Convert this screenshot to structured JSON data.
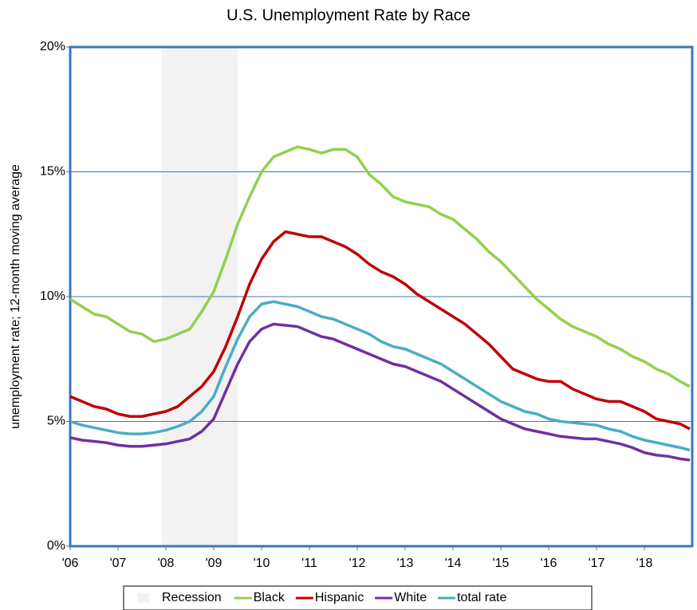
{
  "chart_data": {
    "type": "line",
    "title": "U.S. Unemployment Rate by Race",
    "y_label": "unemployment rate; 12-month moving average",
    "x": [
      2006,
      2006.25,
      2006.5,
      2006.75,
      2007,
      2007.25,
      2007.5,
      2007.75,
      2008,
      2008.25,
      2008.5,
      2008.75,
      2009,
      2009.25,
      2009.5,
      2009.75,
      2010,
      2010.25,
      2010.5,
      2010.75,
      2011,
      2011.25,
      2011.5,
      2011.75,
      2012,
      2012.25,
      2012.5,
      2012.75,
      2013,
      2013.25,
      2013.5,
      2013.75,
      2014,
      2014.25,
      2014.5,
      2014.75,
      2015,
      2015.25,
      2015.5,
      2015.75,
      2016,
      2016.25,
      2016.5,
      2016.75,
      2017,
      2017.25,
      2017.5,
      2017.75,
      2018,
      2018.25,
      2018.5,
      2018.75,
      2018.95
    ],
    "series": [
      {
        "name": "Black",
        "color": "#92d050",
        "values": [
          9.9,
          9.6,
          9.3,
          9.2,
          8.9,
          8.6,
          8.5,
          8.2,
          8.3,
          8.5,
          8.7,
          9.4,
          10.2,
          11.5,
          12.9,
          14.0,
          15.0,
          15.6,
          15.8,
          16.0,
          15.9,
          15.75,
          15.9,
          15.9,
          15.6,
          14.9,
          14.5,
          14.0,
          13.8,
          13.7,
          13.6,
          13.3,
          13.1,
          12.7,
          12.3,
          11.8,
          11.4,
          10.9,
          10.4,
          9.9,
          9.5,
          9.1,
          8.8,
          8.6,
          8.4,
          8.1,
          7.9,
          7.6,
          7.4,
          7.1,
          6.9,
          6.6,
          6.4
        ]
      },
      {
        "name": "Hispanic",
        "color": "#c00000",
        "values": [
          6.0,
          5.8,
          5.6,
          5.5,
          5.3,
          5.2,
          5.2,
          5.3,
          5.4,
          5.6,
          6.0,
          6.4,
          7.0,
          8.0,
          9.2,
          10.5,
          11.5,
          12.2,
          12.6,
          12.5,
          12.4,
          12.4,
          12.2,
          12.0,
          11.7,
          11.3,
          11.0,
          10.8,
          10.5,
          10.1,
          9.8,
          9.5,
          9.2,
          8.9,
          8.5,
          8.1,
          7.6,
          7.1,
          6.9,
          6.7,
          6.6,
          6.6,
          6.3,
          6.1,
          5.9,
          5.8,
          5.8,
          5.6,
          5.4,
          5.1,
          5.0,
          4.9,
          4.7
        ]
      },
      {
        "name": "White",
        "color": "#7030a0",
        "values": [
          4.35,
          4.25,
          4.2,
          4.15,
          4.05,
          4.0,
          4.0,
          4.05,
          4.1,
          4.2,
          4.3,
          4.6,
          5.1,
          6.2,
          7.3,
          8.2,
          8.7,
          8.9,
          8.85,
          8.8,
          8.6,
          8.4,
          8.3,
          8.1,
          7.9,
          7.7,
          7.5,
          7.3,
          7.2,
          7.0,
          6.8,
          6.6,
          6.3,
          6.0,
          5.7,
          5.4,
          5.1,
          4.9,
          4.7,
          4.6,
          4.5,
          4.4,
          4.35,
          4.3,
          4.3,
          4.2,
          4.1,
          3.95,
          3.75,
          3.65,
          3.6,
          3.5,
          3.45
        ]
      },
      {
        "name": "total rate",
        "color": "#4bacc6",
        "values": [
          5.0,
          4.85,
          4.75,
          4.65,
          4.55,
          4.5,
          4.5,
          4.55,
          4.65,
          4.8,
          5.0,
          5.4,
          6.0,
          7.2,
          8.3,
          9.2,
          9.7,
          9.8,
          9.7,
          9.6,
          9.4,
          9.2,
          9.1,
          8.9,
          8.7,
          8.5,
          8.2,
          8.0,
          7.9,
          7.7,
          7.5,
          7.3,
          7.0,
          6.7,
          6.4,
          6.1,
          5.8,
          5.6,
          5.4,
          5.3,
          5.1,
          5.0,
          4.95,
          4.9,
          4.85,
          4.7,
          4.6,
          4.4,
          4.25,
          4.15,
          4.05,
          3.95,
          3.85
        ]
      }
    ],
    "recession": {
      "name": "Recession",
      "range": [
        2007.92,
        2009.5
      ],
      "color": "#f2f2f2"
    },
    "xlim": [
      2006,
      2019
    ],
    "xticks": [
      {
        "value": 2006,
        "label": "'06"
      },
      {
        "value": 2007,
        "label": "'07"
      },
      {
        "value": 2008,
        "label": "'08"
      },
      {
        "value": 2009,
        "label": "'09"
      },
      {
        "value": 2010,
        "label": "'10"
      },
      {
        "value": 2011,
        "label": "'11"
      },
      {
        "value": 2012,
        "label": "'12"
      },
      {
        "value": 2013,
        "label": "'13"
      },
      {
        "value": 2014,
        "label": "'14"
      },
      {
        "value": 2015,
        "label": "'15"
      },
      {
        "value": 2016,
        "label": "'16"
      },
      {
        "value": 2017,
        "label": "'17"
      },
      {
        "value": 2018,
        "label": "'18"
      }
    ],
    "ylim": [
      0,
      20
    ],
    "yticks": [
      {
        "value": 0,
        "label": "0%"
      },
      {
        "value": 5,
        "label": "5%"
      },
      {
        "value": 10,
        "label": "10%"
      },
      {
        "value": 15,
        "label": "15%"
      },
      {
        "value": 20,
        "label": "20%"
      }
    ],
    "grid": true,
    "legend": "bottom"
  }
}
